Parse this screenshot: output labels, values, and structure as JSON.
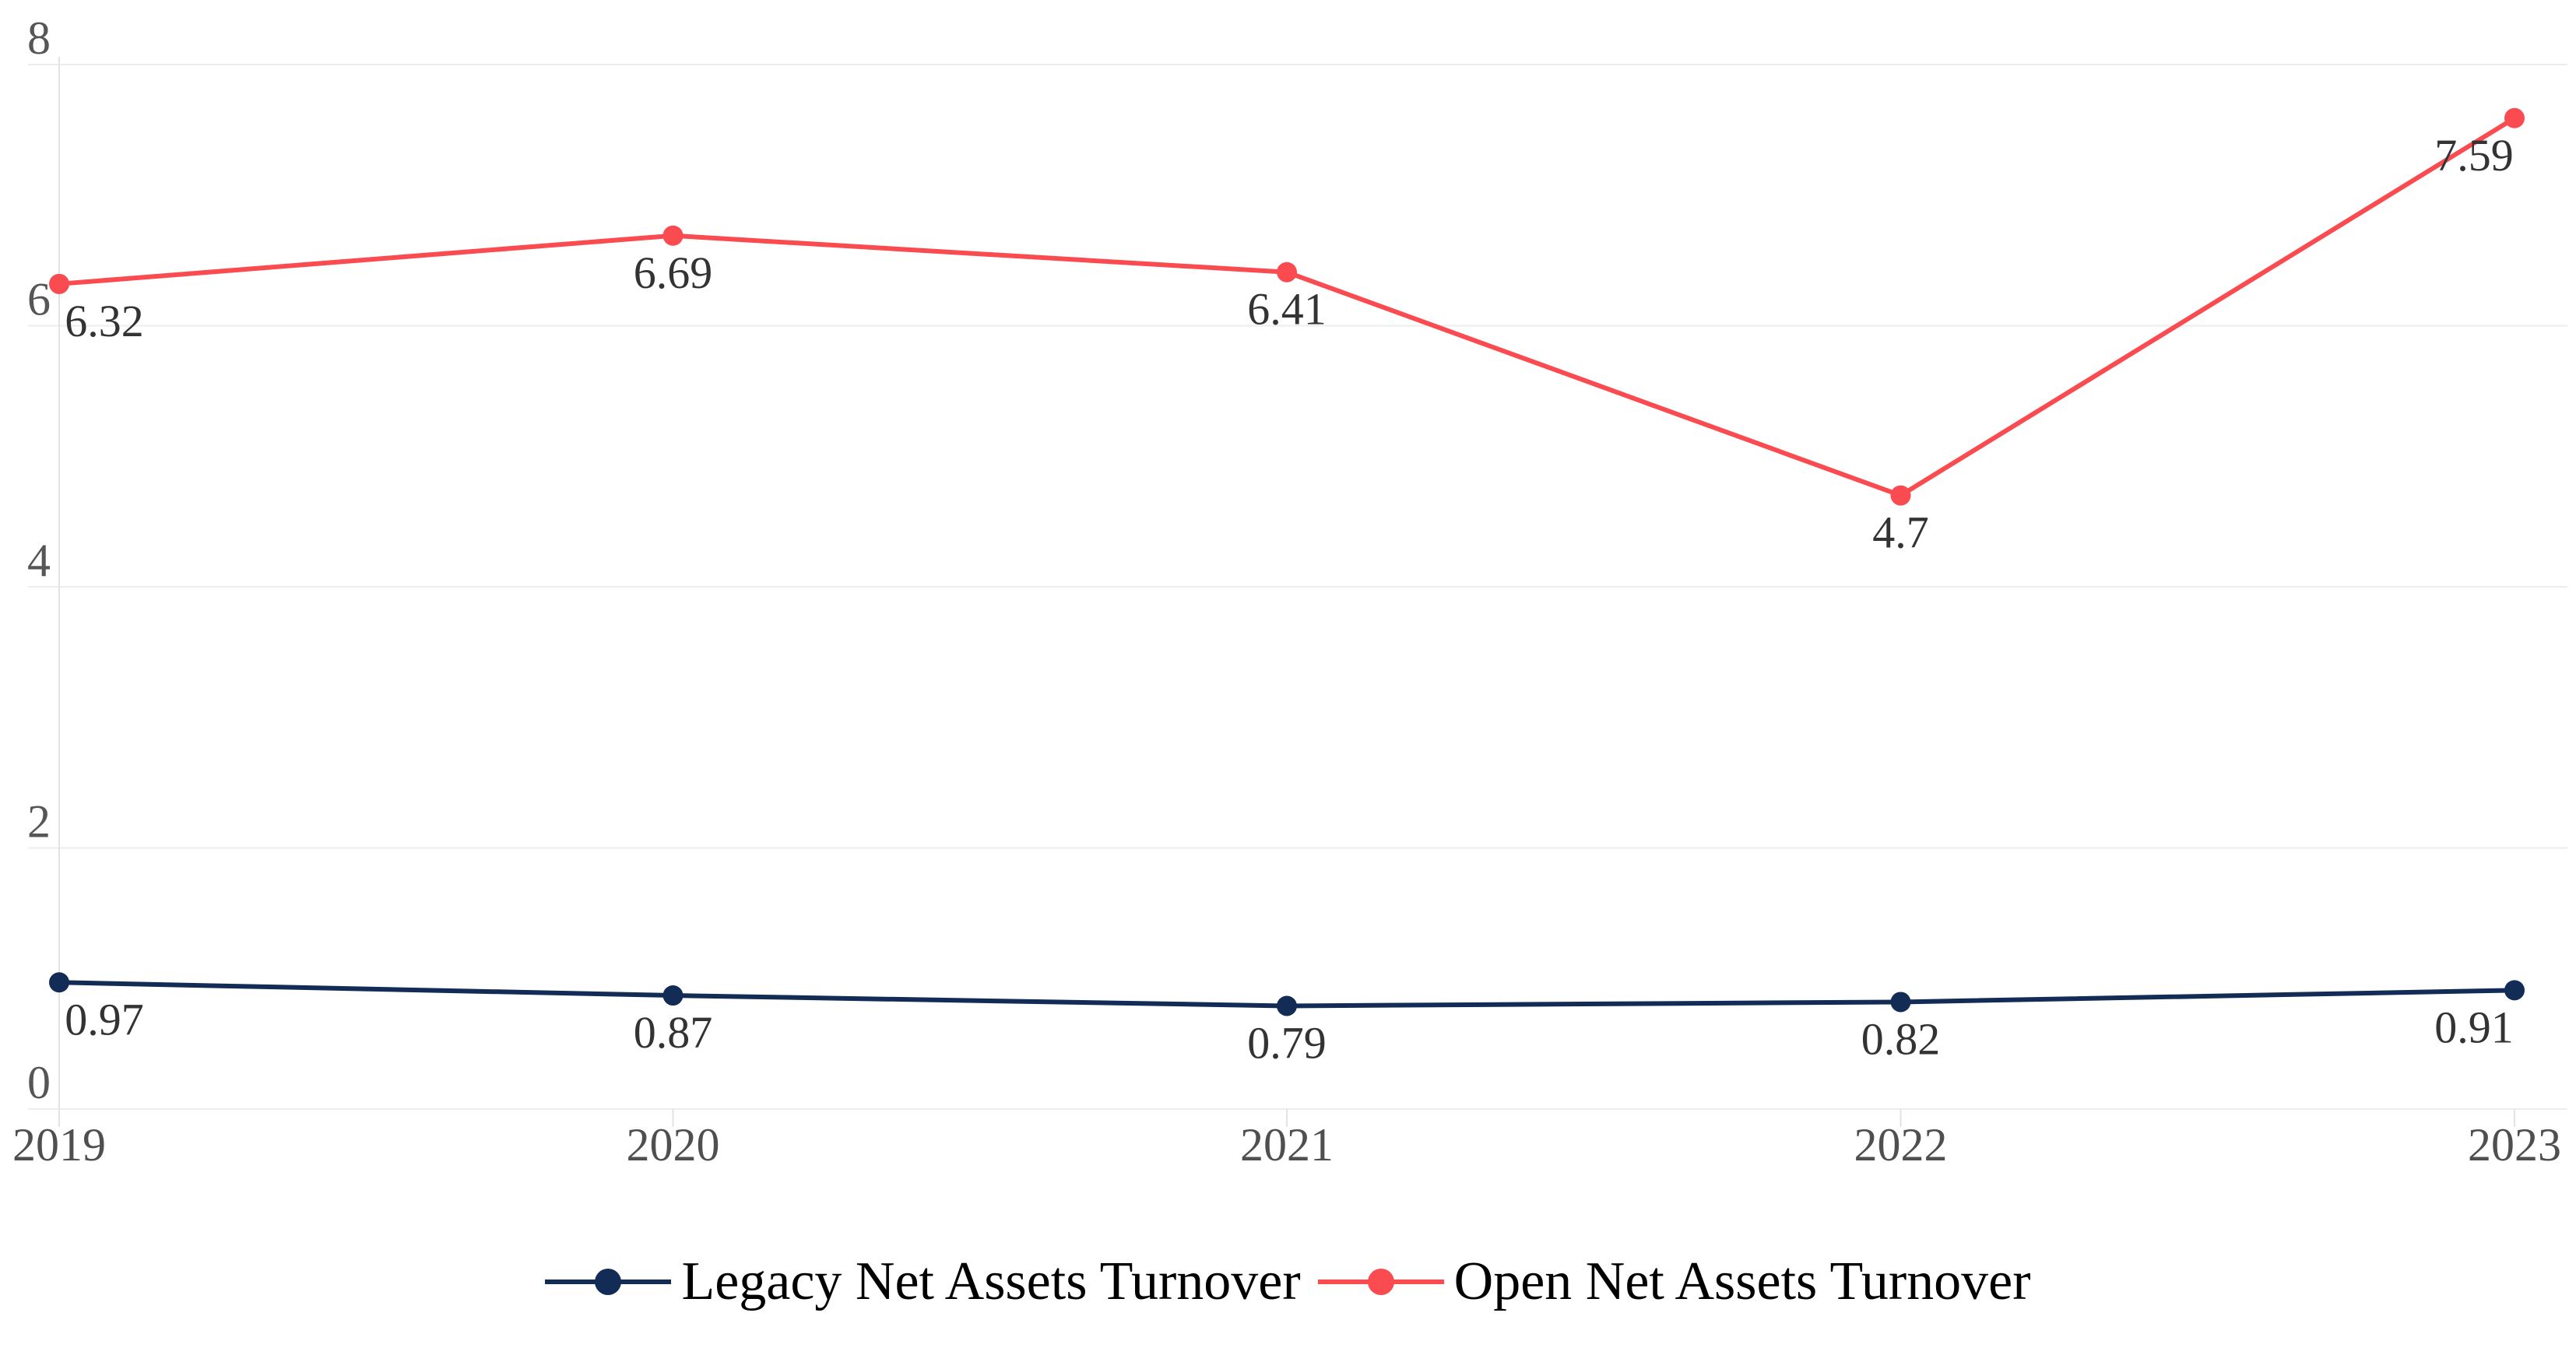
{
  "chart_data": {
    "type": "line",
    "title": "",
    "xlabel": "",
    "ylabel": "",
    "categories": [
      "2019",
      "2020",
      "2021",
      "2022",
      "2023"
    ],
    "series": [
      {
        "name": "Legacy Net Assets Turnover",
        "color": "#132C56",
        "values": [
          0.97,
          0.87,
          0.79,
          0.82,
          0.91
        ]
      },
      {
        "name": "Open Net Assets Turnover",
        "color": "#F94B50",
        "values": [
          6.32,
          6.69,
          6.41,
          4.7,
          7.59
        ]
      }
    ],
    "ylim": [
      0,
      8
    ],
    "y_ticks": [
      0,
      2,
      4,
      6,
      8
    ],
    "grid": true,
    "point_labels": true,
    "legend_position": "bottom",
    "style": {
      "background": "#ffffff",
      "grid_line_color": "#ededed",
      "axis_line_color": "#e3e3e3",
      "x_tick_label_color": "#4f4f4f",
      "y_tick_label_color": "#565656",
      "data_label_color": "#333333",
      "legend_text_color": "#000000"
    }
  }
}
